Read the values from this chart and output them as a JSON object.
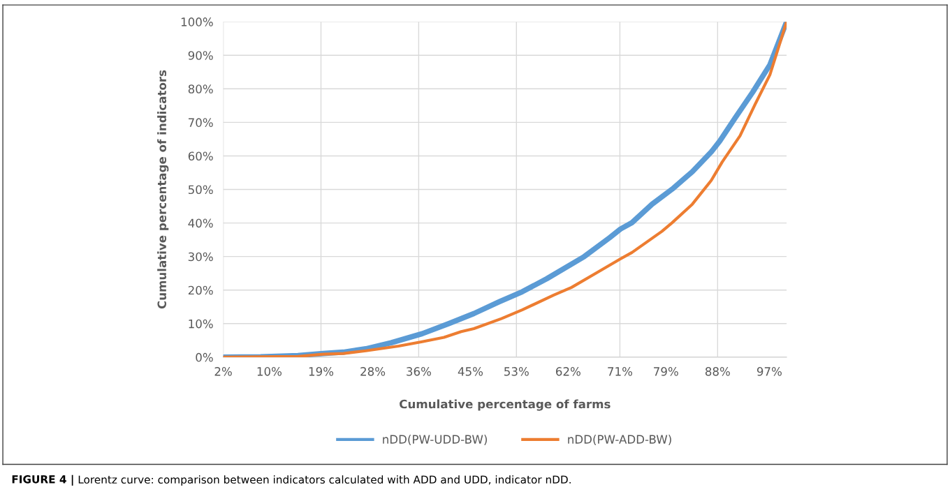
{
  "chart_data": {
    "type": "line",
    "xlabel": "Cumulative percentage of farms",
    "ylabel": "Cumulative percentage of indicators",
    "annotations": [
      "FIGURE 4 |",
      "Lorentz curve: comparison between indicators calculated with ADD and UDD, indicator nDD."
    ],
    "xlim": [
      2,
      100
    ],
    "ylim": [
      0,
      100
    ],
    "xticks": [
      {
        "value": 2,
        "label": "2%"
      },
      {
        "value": 10,
        "label": "10%"
      },
      {
        "value": 19,
        "label": "19%"
      },
      {
        "value": 28,
        "label": "28%"
      },
      {
        "value": 36,
        "label": "36%"
      },
      {
        "value": 45,
        "label": "45%"
      },
      {
        "value": 53,
        "label": "53%"
      },
      {
        "value": 62,
        "label": "62%"
      },
      {
        "value": 71,
        "label": "71%"
      },
      {
        "value": 79,
        "label": "79%"
      },
      {
        "value": 88,
        "label": "88%"
      },
      {
        "value": 97,
        "label": "97%"
      }
    ],
    "yticks": [
      {
        "value": 0,
        "label": "0%"
      },
      {
        "value": 10,
        "label": "10%"
      },
      {
        "value": 20,
        "label": "20%"
      },
      {
        "value": 30,
        "label": "30%"
      },
      {
        "value": 40,
        "label": "40%"
      },
      {
        "value": 50,
        "label": "50%"
      },
      {
        "value": 60,
        "label": "60%"
      },
      {
        "value": 70,
        "label": "70%"
      },
      {
        "value": 80,
        "label": "80%"
      },
      {
        "value": 90,
        "label": "90%"
      },
      {
        "value": 100,
        "label": "100%"
      }
    ],
    "grid": true,
    "legend": "bottom",
    "marker": "none",
    "line_style": "solid",
    "series": [
      {
        "name": "nDD(PW-UDD-BW)",
        "color": "#5b9bd5",
        "x": [
          2,
          8.5,
          15,
          19.4,
          22.9,
          26.8,
          31.2,
          36.6,
          41.2,
          45.6,
          50,
          54,
          58.3,
          64.8,
          69.2,
          71.1,
          73.1,
          76.6,
          80.1,
          83.6,
          86.9,
          88.4,
          91,
          94.1,
          97.1,
          100
        ],
        "values": [
          0,
          0.1,
          0.5,
          1.1,
          1.5,
          2.5,
          4.3,
          7,
          10,
          13,
          16.5,
          19.5,
          23.4,
          30,
          35.6,
          38.2,
          40.1,
          45.6,
          50.1,
          55.3,
          61.2,
          64.5,
          71.2,
          79,
          87.2,
          100
        ]
      },
      {
        "name": "nDD(PW-ADD-BW)",
        "color": "#ed7d31",
        "x": [
          2,
          15,
          19.4,
          22.9,
          26.8,
          32.5,
          36.6,
          40.4,
          43.4,
          45.6,
          50.4,
          54,
          59.5,
          62.6,
          67,
          71.1,
          73.1,
          78.3,
          80.1,
          83.6,
          86.9,
          88.8,
          91.9,
          94.5,
          97.1,
          100
        ],
        "values": [
          0,
          0.2,
          0.9,
          1.1,
          1.9,
          3.3,
          4.6,
          5.9,
          7.6,
          8.5,
          11.5,
          14.1,
          18.5,
          20.8,
          25.2,
          29.3,
          31.2,
          37.5,
          40.1,
          45.6,
          52.7,
          58.2,
          66,
          75.3,
          84.2,
          100
        ]
      }
    ]
  }
}
